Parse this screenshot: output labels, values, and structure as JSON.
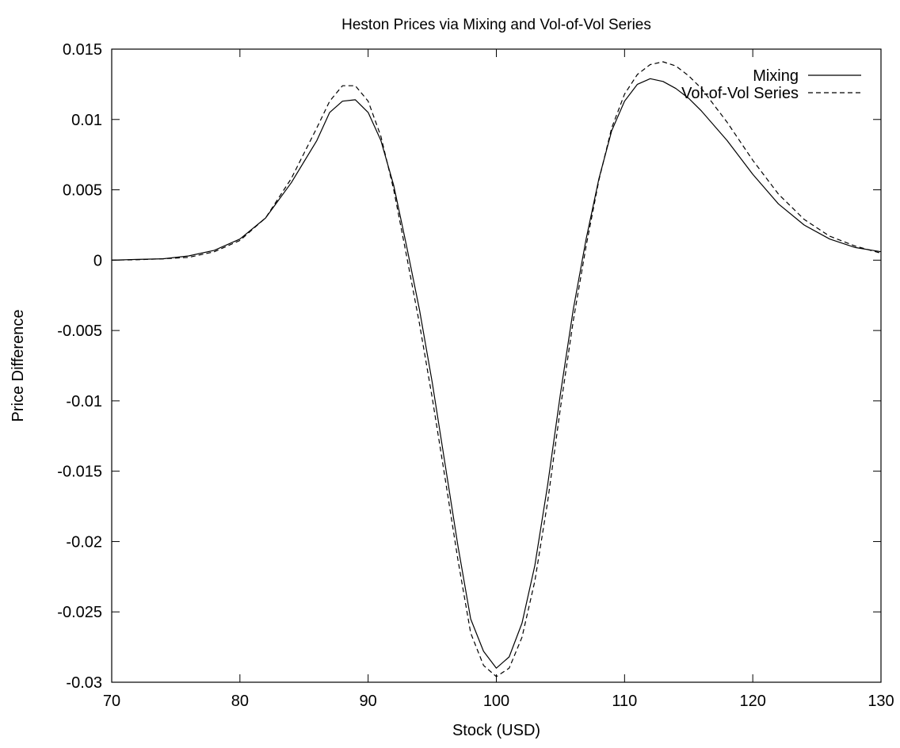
{
  "chart_data": {
    "type": "line",
    "title": "Heston Prices via Mixing and Vol-of-Vol Series",
    "xlabel": "Stock (USD)",
    "ylabel": "Price Difference",
    "xlim": [
      70,
      130
    ],
    "ylim": [
      -0.03,
      0.015
    ],
    "xticks": [
      70,
      80,
      90,
      100,
      110,
      120,
      130
    ],
    "xtick_labels": [
      "70",
      "80",
      "90",
      "100",
      "110",
      "120",
      "130"
    ],
    "yticks": [
      0.015,
      0.01,
      0.005,
      0,
      -0.005,
      -0.01,
      -0.015,
      -0.02,
      -0.025,
      -0.03
    ],
    "ytick_labels": [
      "0.015",
      "0.01",
      "0.005",
      "0",
      "-0.005",
      "-0.01",
      "-0.015",
      "-0.02",
      "-0.025",
      "-0.03"
    ],
    "grid": false,
    "legend_position": "top-right",
    "series": [
      {
        "name": "Mixing",
        "style": "solid",
        "x": [
          70,
          72,
          74,
          76,
          78,
          80,
          82,
          84,
          86,
          87,
          88,
          89,
          90,
          91,
          92,
          93,
          94,
          95,
          96,
          97,
          98,
          99,
          100,
          101,
          102,
          103,
          104,
          105,
          106,
          107,
          108,
          109,
          110,
          111,
          112,
          113,
          114,
          115,
          116,
          118,
          120,
          122,
          124,
          126,
          128,
          130
        ],
        "y": [
          0.0,
          5e-05,
          0.0001,
          0.0003,
          0.0007,
          0.0015,
          0.003,
          0.0055,
          0.0085,
          0.0105,
          0.0113,
          0.0114,
          0.0105,
          0.0085,
          0.0053,
          0.001,
          -0.0035,
          -0.0087,
          -0.0145,
          -0.0203,
          -0.0255,
          -0.0278,
          -0.029,
          -0.0282,
          -0.0258,
          -0.0217,
          -0.016,
          -0.0095,
          -0.0035,
          0.0015,
          0.0058,
          0.0092,
          0.0113,
          0.0125,
          0.0129,
          0.0127,
          0.0122,
          0.0115,
          0.0106,
          0.0085,
          0.0061,
          0.004,
          0.0025,
          0.0015,
          0.0009,
          0.0006
        ]
      },
      {
        "name": "Vol-of-Vol Series",
        "style": "dashed",
        "x": [
          70,
          72,
          74,
          76,
          78,
          80,
          82,
          84,
          86,
          87,
          88,
          89,
          90,
          91,
          92,
          93,
          94,
          95,
          96,
          97,
          98,
          99,
          100,
          101,
          102,
          103,
          104,
          105,
          106,
          107,
          108,
          109,
          110,
          111,
          112,
          113,
          114,
          115,
          116,
          118,
          120,
          122,
          124,
          126,
          128,
          130
        ],
        "y": [
          0.0,
          3e-05,
          0.0001,
          0.0002,
          0.0006,
          0.0014,
          0.003,
          0.0058,
          0.0094,
          0.0113,
          0.0124,
          0.0124,
          0.0113,
          0.0088,
          0.005,
          0.0003,
          -0.0045,
          -0.0098,
          -0.0155,
          -0.0213,
          -0.0265,
          -0.0288,
          -0.0296,
          -0.029,
          -0.0268,
          -0.0228,
          -0.0172,
          -0.0105,
          -0.0043,
          0.001,
          0.0057,
          0.0094,
          0.0118,
          0.0132,
          0.0139,
          0.0141,
          0.0138,
          0.0131,
          0.0122,
          0.0098,
          0.0071,
          0.0047,
          0.0029,
          0.0017,
          0.001,
          0.0005
        ]
      }
    ]
  }
}
